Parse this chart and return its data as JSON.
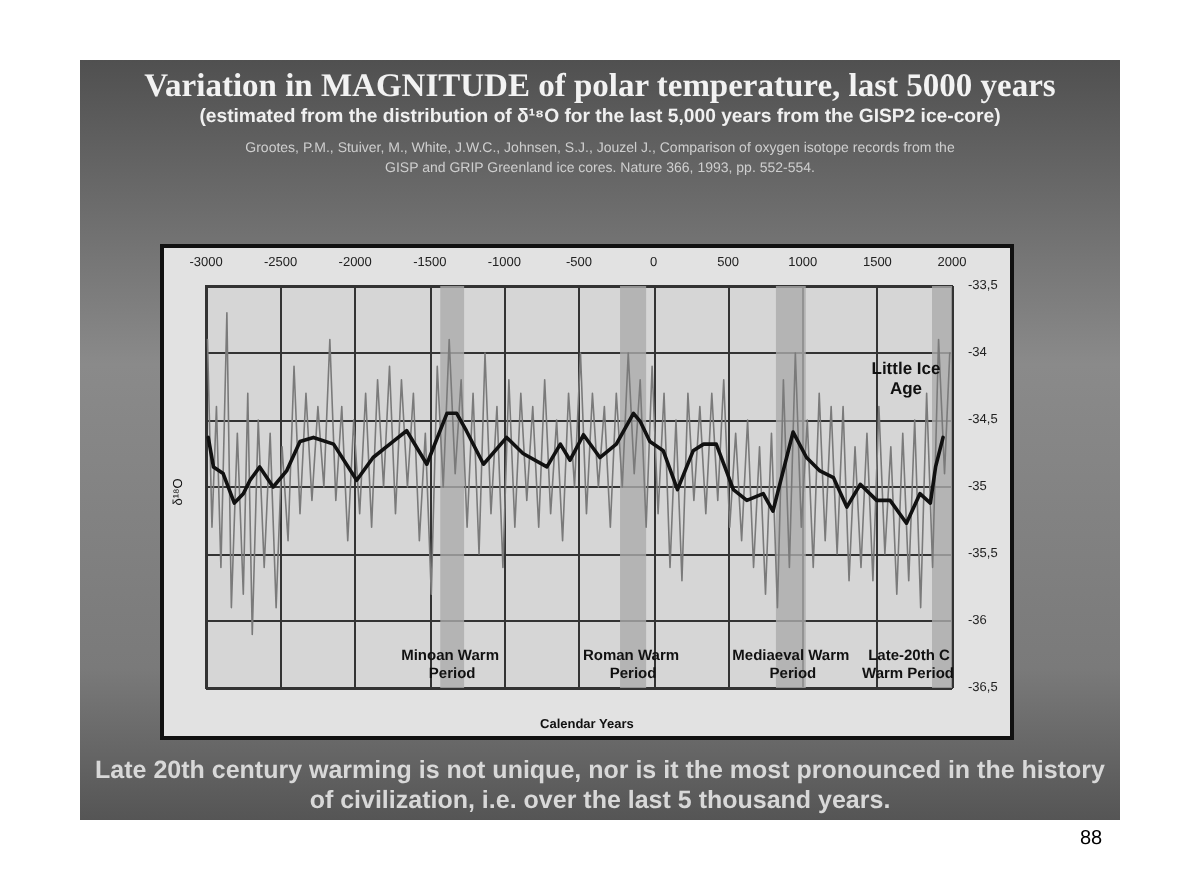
{
  "chart_data": {
    "type": "line",
    "title": "Variation in MAGNITUDE of polar temperature, last 5000 years",
    "subtitle": "(estimated from the distribution of δ¹⁸O for the last 5,000 years from the GISP2 ice-core)",
    "xlabel": "Calendar Years",
    "ylabel": "δ¹⁸O",
    "annotations": [
      "Grootes, P.M., Stuiver, M., White, J.W.C., Johnsen, S.J., Jouzel J., Comparison of oxygen isotope records from the GISP and GRIP Greenland ice cores. Nature 366, 1993, pp. 552-554.",
      "Late 20th century warming is not unique, nor is it the most pronounced in the history of civilization, i.e. over the last 5 thousand years.",
      "88",
      "Little Ice Age"
    ],
    "xlim": [
      -3000,
      2000
    ],
    "xticks": [
      -3000,
      -2500,
      -2000,
      -1500,
      -1000,
      -500,
      0,
      500,
      1000,
      1500,
      2000
    ],
    "ylim": [
      -36.5,
      -33.5
    ],
    "yticks": [
      {
        "value": -33.5,
        "label": "-33,5"
      },
      -34,
      {
        "value": -34.5,
        "label": "-34,5"
      },
      -35,
      {
        "value": -35.5,
        "label": "-35,5"
      },
      -36,
      {
        "value": -36.5,
        "label": "-36,5"
      }
    ],
    "grid": true,
    "marker": "none",
    "line_style": "solid",
    "bands": [
      {
        "axis": "x",
        "from": -1430,
        "to": -1270,
        "label": "Minoan Warm Period",
        "color": "#ababab"
      },
      {
        "axis": "x",
        "from": -225,
        "to": -50,
        "label": "Roman Warm Period",
        "color": "#ababab"
      },
      {
        "axis": "x",
        "from": 820,
        "to": 1020,
        "label": "Mediaeval Warm Period",
        "color": "#ababab"
      },
      {
        "axis": "x",
        "from": 1866,
        "to": 2000,
        "label": "Late-20th C Warm Period",
        "color": "#ababab"
      }
    ],
    "series": [
      {
        "color": "#7a7a7a",
        "x": [
          -2990,
          -2960,
          -2930,
          -2900,
          -2860,
          -2830,
          -2790,
          -2750,
          -2720,
          -2690,
          -2650,
          -2610,
          -2570,
          -2530,
          -2490,
          -2450,
          -2410,
          -2370,
          -2330,
          -2290,
          -2250,
          -2210,
          -2170,
          -2130,
          -2090,
          -2050,
          -2010,
          -1970,
          -1930,
          -1890,
          -1850,
          -1810,
          -1770,
          -1730,
          -1690,
          -1650,
          -1610,
          -1570,
          -1530,
          -1490,
          -1450,
          -1410,
          -1370,
          -1330,
          -1290,
          -1250,
          -1210,
          -1170,
          -1130,
          -1090,
          -1050,
          -1010,
          -970,
          -930,
          -890,
          -850,
          -810,
          -770,
          -730,
          -690,
          -650,
          -610,
          -570,
          -530,
          -490,
          -450,
          -410,
          -370,
          -330,
          -290,
          -250,
          -210,
          -170,
          -130,
          -90,
          -50,
          -10,
          30,
          70,
          110,
          150,
          190,
          230,
          270,
          310,
          350,
          390,
          430,
          470,
          510,
          550,
          590,
          630,
          670,
          710,
          750,
          790,
          830,
          870,
          910,
          950,
          990,
          1030,
          1070,
          1110,
          1150,
          1190,
          1230,
          1270,
          1310,
          1350,
          1390,
          1430,
          1470,
          1510,
          1550,
          1590,
          1630,
          1670,
          1710,
          1750,
          1790,
          1830,
          1870,
          1910,
          1950,
          1985
        ],
        "values": [
          -33.9,
          -35.3,
          -34.4,
          -35.6,
          -33.7,
          -35.9,
          -34.6,
          -35.8,
          -34.3,
          -36.1,
          -34.5,
          -35.6,
          -34.6,
          -35.9,
          -34.7,
          -35.4,
          -34.1,
          -35.2,
          -34.3,
          -35.1,
          -34.4,
          -35.0,
          -33.9,
          -35.1,
          -34.4,
          -35.4,
          -34.5,
          -35.2,
          -34.3,
          -35.3,
          -34.2,
          -35.0,
          -34.1,
          -35.2,
          -34.2,
          -35.0,
          -34.3,
          -35.4,
          -34.6,
          -35.8,
          -34.1,
          -35.0,
          -33.9,
          -34.9,
          -34.2,
          -35.3,
          -34.3,
          -35.5,
          -34.0,
          -35.2,
          -34.4,
          -35.6,
          -34.2,
          -35.3,
          -34.3,
          -35.1,
          -34.4,
          -35.3,
          -34.2,
          -35.2,
          -34.5,
          -35.4,
          -34.3,
          -35.0,
          -34.0,
          -35.2,
          -34.3,
          -35.0,
          -34.4,
          -35.3,
          -34.3,
          -35.0,
          -34.0,
          -34.9,
          -34.2,
          -35.3,
          -34.1,
          -35.2,
          -34.3,
          -35.6,
          -34.5,
          -35.7,
          -34.3,
          -35.1,
          -34.4,
          -35.2,
          -34.3,
          -35.1,
          -34.2,
          -35.3,
          -34.6,
          -35.4,
          -34.5,
          -35.6,
          -34.7,
          -35.8,
          -34.6,
          -35.9,
          -34.2,
          -35.6,
          -34.0,
          -35.3,
          -34.5,
          -35.6,
          -34.3,
          -35.4,
          -34.4,
          -35.5,
          -34.4,
          -35.7,
          -34.7,
          -35.6,
          -34.6,
          -35.7,
          -34.4,
          -35.5,
          -34.7,
          -35.8,
          -34.6,
          -35.7,
          -34.5,
          -35.9,
          -34.3,
          -35.6,
          -33.9,
          -34.9,
          -34.0
        ]
      },
      {
        "color": "#111111",
        "x": [
          -2985,
          -2950,
          -2885,
          -2810,
          -2750,
          -2705,
          -2640,
          -2550,
          -2460,
          -2370,
          -2280,
          -2145,
          -1990,
          -1880,
          -1745,
          -1655,
          -1520,
          -1385,
          -1320,
          -1255,
          -1140,
          -985,
          -875,
          -715,
          -625,
          -560,
          -470,
          -360,
          -250,
          -135,
          -90,
          -25,
          65,
          160,
          265,
          335,
          420,
          535,
          625,
          735,
          800,
          935,
          1025,
          1115,
          1205,
          1295,
          1385,
          1495,
          1585,
          1695,
          1785,
          1855,
          1890,
          1940
        ],
        "values": [
          -34.63,
          -34.85,
          -34.9,
          -35.12,
          -35.05,
          -34.95,
          -34.85,
          -35.0,
          -34.88,
          -34.66,
          -34.63,
          -34.68,
          -34.95,
          -34.78,
          -34.66,
          -34.58,
          -34.83,
          -34.45,
          -34.45,
          -34.58,
          -34.83,
          -34.63,
          -34.75,
          -34.85,
          -34.68,
          -34.8,
          -34.61,
          -34.78,
          -34.68,
          -34.45,
          -34.51,
          -34.66,
          -34.73,
          -35.02,
          -34.73,
          -34.68,
          -34.68,
          -35.02,
          -35.1,
          -35.05,
          -35.18,
          -34.59,
          -34.78,
          -34.88,
          -34.93,
          -35.15,
          -34.98,
          -35.1,
          -35.1,
          -35.27,
          -35.05,
          -35.12,
          -34.85,
          -34.63
        ]
      }
    ]
  }
}
